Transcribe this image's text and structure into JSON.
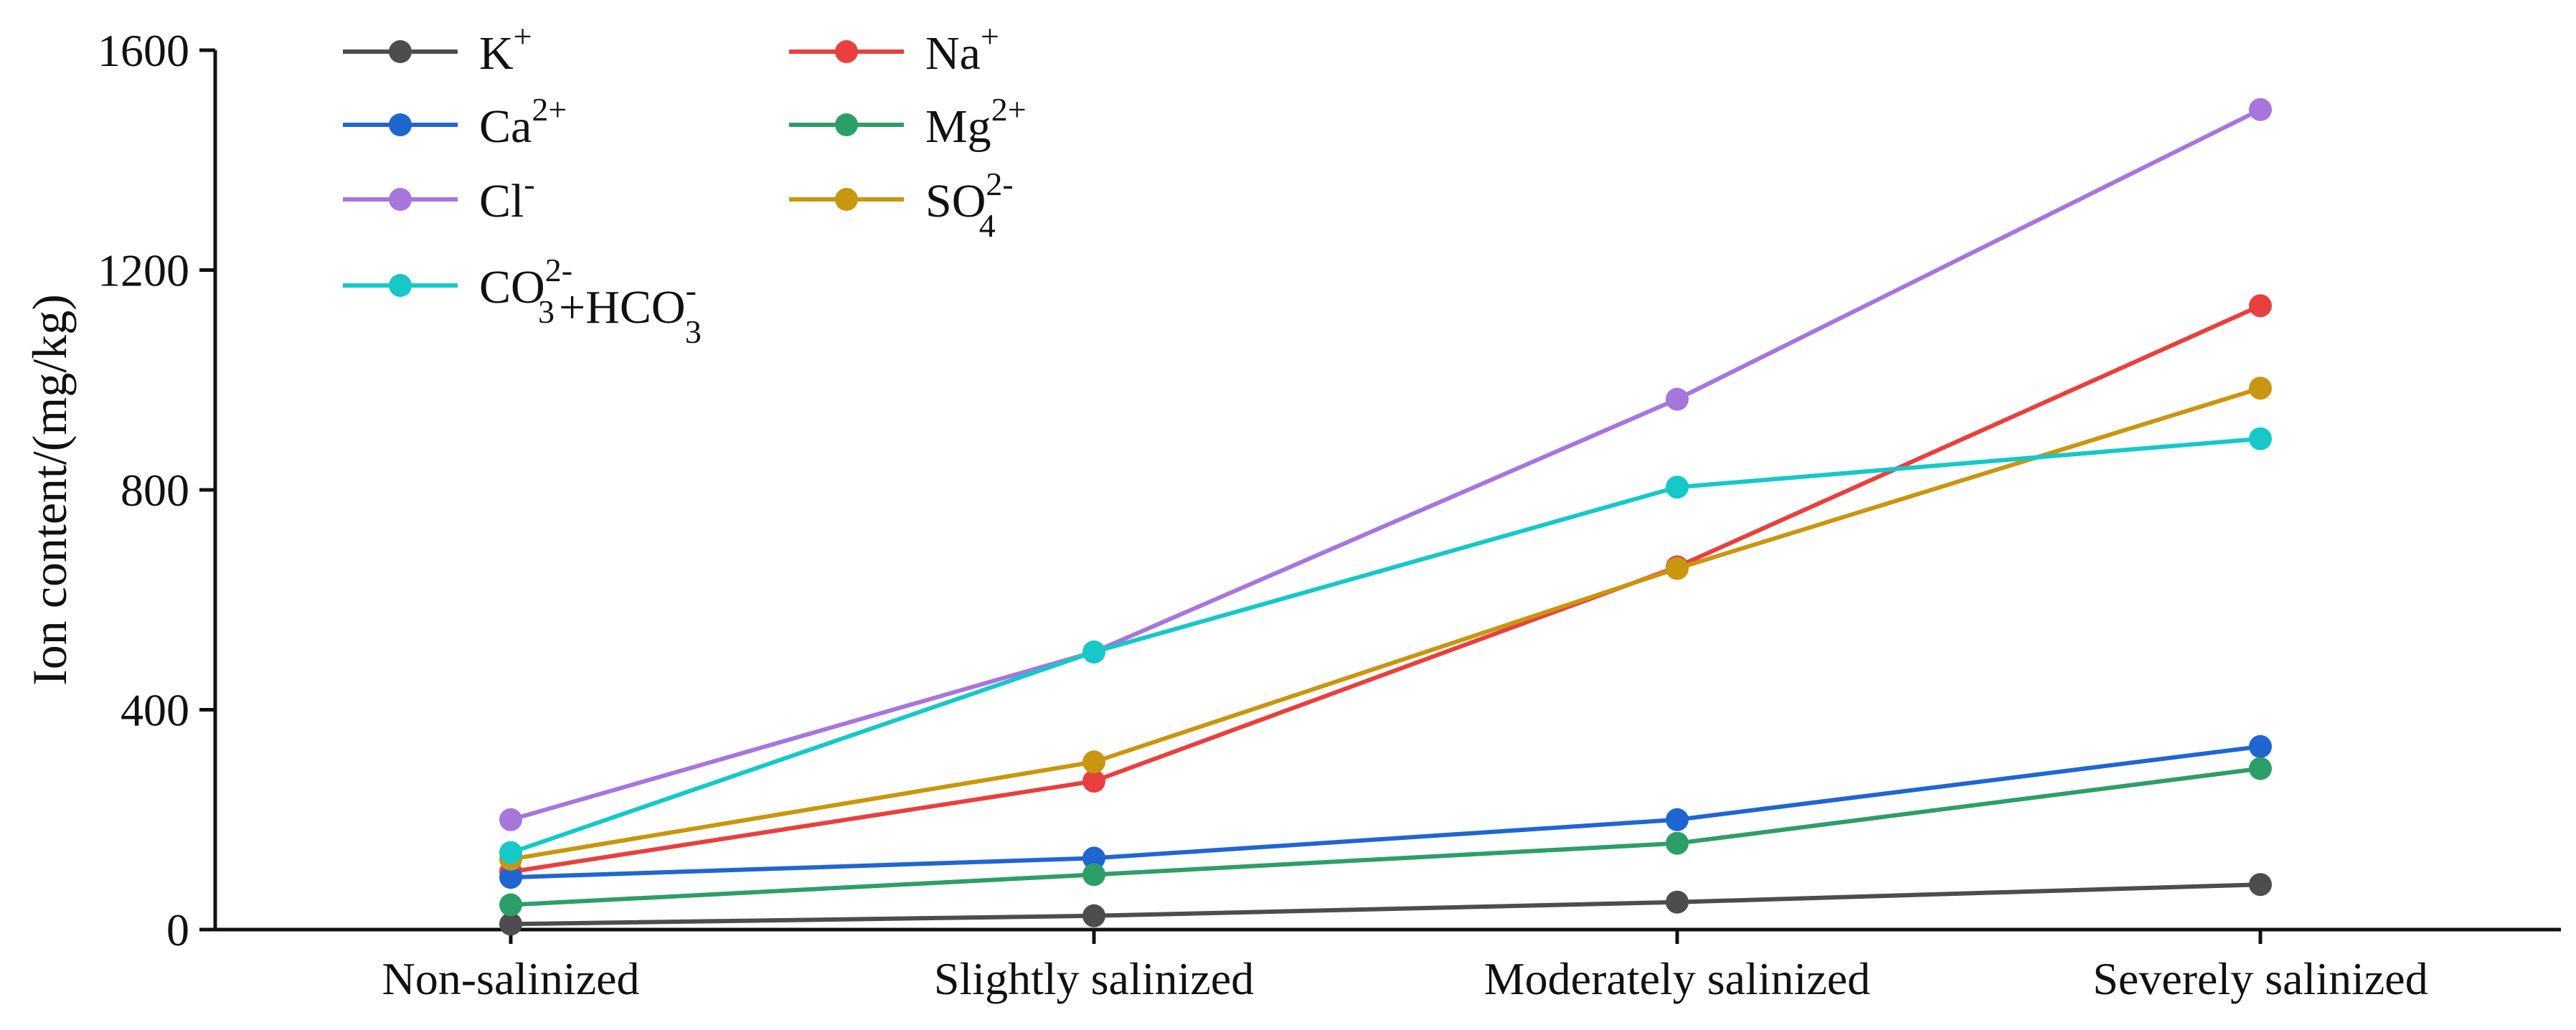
{
  "chart_data": {
    "type": "line",
    "title": "",
    "xlabel": "",
    "ylabel": "Ion content/(mg/kg)",
    "ylim": [
      0,
      1600
    ],
    "yticks": [
      0,
      400,
      800,
      1200,
      1600
    ],
    "categories": [
      "Non-salinized",
      "Slightly salinized",
      "Moderately salinized",
      "Severely salinized"
    ],
    "legend_position": "top-left",
    "series": [
      {
        "name": "K+",
        "label_base": "K",
        "label_sup": "+",
        "label_sub": "",
        "label_tail": "",
        "color": "#4d4d4d",
        "values": [
          10,
          25,
          50,
          82
        ]
      },
      {
        "name": "Na+",
        "label_base": "Na",
        "label_sup": "+",
        "label_sub": "",
        "label_tail": "",
        "color": "#e8403f",
        "values": [
          105,
          270,
          660,
          1135
        ]
      },
      {
        "name": "Ca2+",
        "label_base": "Ca",
        "label_sup": "2+",
        "label_sub": "",
        "label_tail": "",
        "color": "#1f66d1",
        "values": [
          95,
          130,
          200,
          333
        ]
      },
      {
        "name": "Mg2+",
        "label_base": "Mg",
        "label_sup": "2+",
        "label_sub": "",
        "label_tail": "",
        "color": "#2e9e68",
        "values": [
          45,
          100,
          157,
          293
        ]
      },
      {
        "name": "Cl-",
        "label_base": "Cl",
        "label_sup": "-",
        "label_sub": "",
        "label_tail": "",
        "color": "#a676dd",
        "values": [
          200,
          505,
          965,
          1492
        ]
      },
      {
        "name": "SO42-",
        "label_base": "SO",
        "label_sup": "2-",
        "label_sub": "4",
        "label_tail": "",
        "color": "#c9960f",
        "values": [
          128,
          305,
          657,
          985
        ]
      },
      {
        "name": "CO32-+HCO3-",
        "label_base": "CO",
        "label_sup": "2-",
        "label_sub": "3",
        "label_tail": "+HCO",
        "label_tail_sup": "-",
        "label_tail_sub": "3",
        "color": "#16c8c8",
        "values": [
          140,
          505,
          805,
          893
        ]
      }
    ]
  }
}
